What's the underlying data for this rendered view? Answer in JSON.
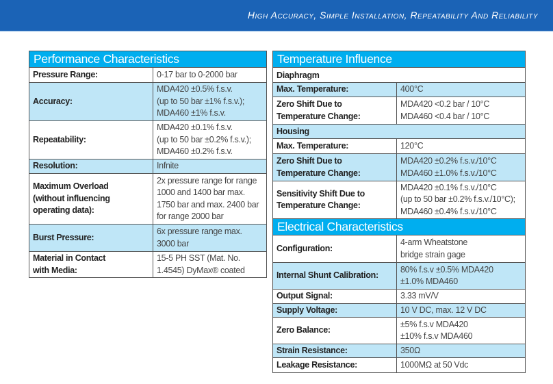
{
  "banner": {
    "title": "High Accuracy, Simple Installation, Repeatability And Reliability"
  },
  "colors": {
    "banner": "#1b63b6",
    "section_header": "#00aeef",
    "highlight_row": "#bfe6f7"
  },
  "left_table": {
    "sections": [
      {
        "title": "Performance Characteristics",
        "rows": [
          {
            "label": "Pressure Range:",
            "value": "0-17 bar to 0-2000 bar"
          },
          {
            "label": "Accuracy:",
            "value": "MDA420 ±0.5% f.s.v.\n(up to 50 bar ±1% f.s.v.);\nMDA460 ±1% f.s.v."
          },
          {
            "label": "Repeatability:",
            "value": "MDA420 ±0.1% f.s.v.\n(up to 50 bar ±0.2% f.s.v.);\nMDA460 ±0.2% f.s.v."
          },
          {
            "label": "Resolution:",
            "value": "Infnite"
          },
          {
            "label": "Maximum Overload\n(without influencing\noperating data):",
            "value": "2x pressure range for range\n1000 and 1400 bar max.\n1750 bar and max. 2400 bar\nfor range 2000 bar"
          },
          {
            "label": "Burst Pressure:",
            "value": "6x pressure range max.\n3000 bar"
          },
          {
            "label": "Material in Contact\nwith Media:",
            "value": "15-5 PH SST (Mat. No.\n1.4545) DyMax® coated"
          }
        ]
      }
    ]
  },
  "right_table": {
    "sections": [
      {
        "title": "Temperature Influence",
        "rows": [
          {
            "subheader": "Diaphragm"
          },
          {
            "label": "Max. Temperature:",
            "value": " 400°C"
          },
          {
            "label": "Zero Shift Due to\nTemperature Change:",
            "value": "MDA420 <0.2 bar / 10°C\nMDA460 <0.4 bar / 10°C"
          },
          {
            "subheader": "Housing"
          },
          {
            "label": "Max. Temperature:",
            "value": "120°C"
          },
          {
            "label": "Zero Shift Due to\nTemperature Change:",
            "value": "MDA420 ±0.2% f.s.v./10°C\nMDA460 ±1.0% f.s.v./10°C"
          },
          {
            "label": "Sensitivity Shift Due to\nTemperature Change:",
            "value": "MDA420 ±0.1% f.s.v./10°C\n(up to 50 bar ±0.2% f.s.v./10°C);\nMDA460 ±0.4% f.s.v./10°C"
          }
        ]
      },
      {
        "title": "Electrical Characteristics",
        "rows": [
          {
            "label": "Configuration:",
            "value": "4-arm Wheatstone\nbridge strain gage"
          },
          {
            "label": "Internal Shunt Calibration:",
            "value": "80% f.s.v ±0.5% MDA420\n±1.0% MDA460"
          },
          {
            "label": "Output Signal:",
            "value": "3.33 mV/V"
          },
          {
            "label": "Supply Voltage:",
            "value": "10 V DC, max. 12 V DC"
          },
          {
            "label": "Zero Balance:",
            "value": "±5% f.s.v MDA420\n±10% f.s.v MDA460"
          },
          {
            "label": "Strain Resistance:",
            "value": "350Ω"
          },
          {
            "label": "Leakage Resistance:",
            "value": "1000MΩ at 50 Vdc"
          }
        ]
      }
    ]
  }
}
